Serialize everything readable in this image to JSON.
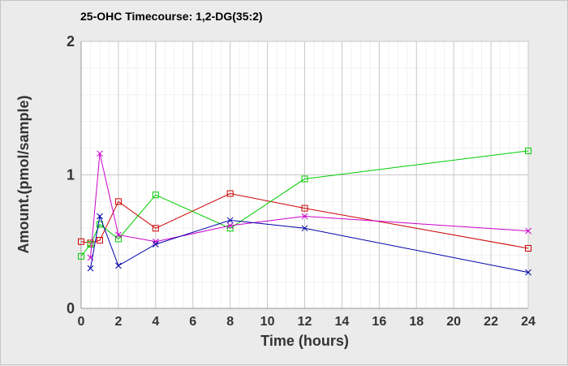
{
  "chart_data": {
    "type": "line",
    "title": "25-OHC Timecourse: 1,2-DG(35:2)",
    "xlabel": "Time (hours)",
    "ylabel": "Amount.(pmol/sample)",
    "xlim": [
      0,
      24
    ],
    "ylim": [
      0,
      2
    ],
    "xticks": [
      0,
      2,
      4,
      6,
      8,
      10,
      12,
      14,
      16,
      18,
      20,
      22,
      24
    ],
    "yticks": [
      0,
      1,
      2
    ],
    "grid": true,
    "legend": "none",
    "series": [
      {
        "color": "#cc0000",
        "marker": "square",
        "x": [
          0,
          0.5,
          1,
          2,
          4,
          8,
          12,
          24
        ],
        "y": [
          0.5,
          0.49,
          0.51,
          0.8,
          0.6,
          0.86,
          0.75,
          0.45
        ]
      },
      {
        "color": "#00cc00",
        "marker": "square",
        "x": [
          0,
          0.5,
          1,
          2,
          4,
          8,
          12,
          24
        ],
        "y": [
          0.39,
          0.48,
          0.63,
          0.52,
          0.85,
          0.6,
          0.97,
          1.18
        ]
      },
      {
        "color": "#cc00cc",
        "marker": "x",
        "x": [
          0.5,
          1,
          2,
          4,
          8,
          12,
          24
        ],
        "y": [
          0.38,
          1.16,
          0.55,
          0.5,
          0.62,
          0.69,
          0.58
        ]
      },
      {
        "color": "#0000aa",
        "marker": "x",
        "x": [
          0.5,
          1,
          2,
          4,
          8,
          12,
          24
        ],
        "y": [
          0.3,
          0.69,
          0.32,
          0.48,
          0.66,
          0.6,
          0.27
        ]
      }
    ]
  }
}
